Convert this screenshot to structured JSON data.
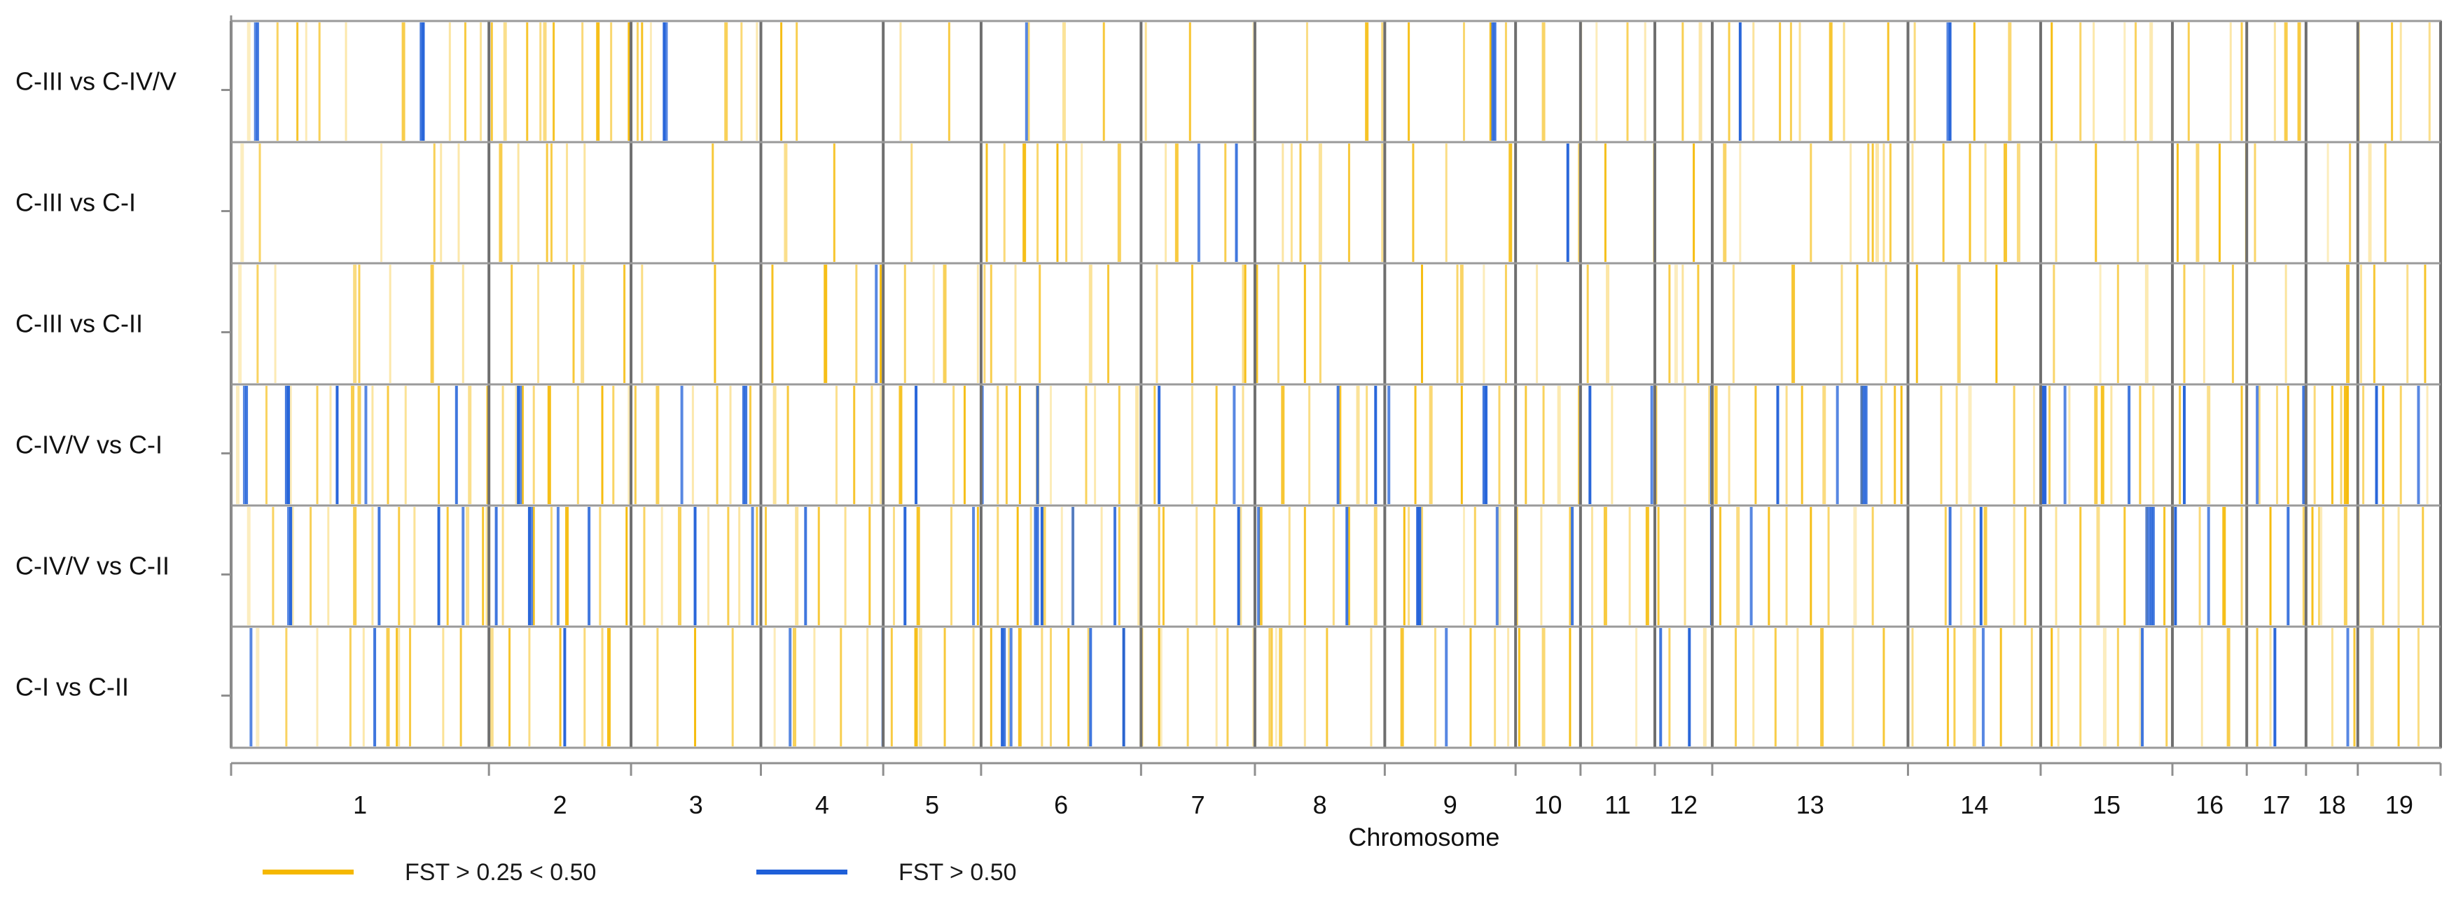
{
  "chart_data": {
    "type": "heatmap",
    "title": "",
    "xlabel": "Chromosome",
    "ylabel": "",
    "rows": [
      "C-III vs C-IV/V",
      "C-III vs C-I",
      "C-III vs C-II",
      "C-IV/V vs C-I",
      "C-IV/V vs C-II",
      "C-I vs C-II"
    ],
    "chromosomes": [
      "1",
      "2",
      "3",
      "4",
      "5",
      "6",
      "7",
      "8",
      "9",
      "10",
      "11",
      "12",
      "13",
      "14",
      "15",
      "16",
      "17",
      "18",
      "19"
    ],
    "chromosome_lengths_mb": [
      274,
      151,
      138,
      130,
      104,
      170,
      121,
      138,
      139,
      69,
      79,
      61,
      208,
      141,
      140,
      79,
      63,
      55,
      88
    ],
    "legend": [
      {
        "label": "FST > 0.25 < 0.50",
        "color": "#F5B800"
      },
      {
        "label": "FST > 0.50",
        "color": "#1F5FD8"
      }
    ],
    "series": [
      {
        "name": "C-III vs C-IV/V",
        "moderate": [
          0.8,
          2.1,
          3.4,
          4.0,
          5.2,
          7.8,
          9.9,
          10.6,
          11.3,
          11.8,
          12.4,
          13.4,
          14.0,
          14.6,
          15.9,
          16.6,
          17.2,
          18.0,
          18.4,
          19.0,
          22.4,
          23.8,
          25.6,
          30.3,
          32.5,
          37.7,
          39.5,
          41.4,
          43.4,
          48.7,
          51.4,
          52.1,
          53.3,
          55.8,
          57.0,
          59.4,
          61.8,
          63.2,
          64.0,
          65.7,
          66.5,
          67.8,
          68.9,
          70.1,
          71.0,
          72.4,
          73.0,
          75.0,
          76.2,
          78.9,
          80.5,
          82.4,
          83.7,
          85.7,
          86.2,
          86.9,
          88.6,
          90.5,
          91.0,
          92.5,
          93.6,
          96.3,
          97.8,
          99.5,
          3.0,
          14.2,
          18.6,
          23.1,
          24.9,
          36.1,
          46.3,
          57.7,
          61.1,
          70.6,
          84.3,
          93.0,
          98.2
        ],
        "strong": [
          1.1,
          8.6,
          19.6,
          36.0,
          57.1,
          68.3,
          77.7,
          1.2,
          8.7,
          19.7,
          57.2,
          77.8
        ]
      },
      {
        "name": "C-III vs C-I",
        "moderate": [
          0.5,
          1.3,
          6.8,
          9.2,
          10.3,
          12.2,
          13.0,
          14.3,
          15.2,
          21.8,
          25.1,
          27.3,
          30.8,
          34.2,
          35.0,
          35.9,
          36.5,
          37.4,
          37.8,
          38.5,
          40.2,
          42.3,
          45.0,
          47.6,
          48.4,
          49.3,
          50.6,
          52.1,
          53.5,
          55.0,
          57.9,
          61.0,
          62.2,
          64.4,
          66.2,
          67.6,
          68.3,
          71.5,
          73.3,
          74.1,
          74.5,
          75.1,
          76.1,
          77.5,
          79.4,
          80.3,
          82.6,
          84.4,
          86.3,
          88.1,
          89.0,
          90.0,
          91.6,
          94.9,
          95.9,
          96.8,
          97.5,
          9.5,
          14.5,
          16.0,
          42.8,
          48.0,
          74.3,
          74.8,
          78.7,
          80.9,
          91.2
        ],
        "strong": [
          43.8,
          45.5,
          60.5
        ]
      },
      {
        "name": "C-III vs C-II",
        "moderate": [
          0.4,
          1.2,
          2.0,
          5.8,
          7.2,
          9.1,
          10.5,
          12.7,
          13.9,
          15.5,
          15.9,
          17.8,
          18.6,
          21.9,
          24.0,
          26.9,
          28.3,
          29.4,
          30.5,
          31.8,
          32.3,
          33.8,
          34.4,
          35.5,
          36.6,
          38.9,
          39.7,
          41.9,
          43.5,
          45.8,
          46.4,
          47.4,
          48.6,
          49.3,
          53.9,
          55.7,
          56.7,
          57.7,
          59.1,
          61.4,
          62.3,
          65.1,
          65.7,
          66.4,
          68.0,
          70.7,
          72.9,
          73.6,
          74.9,
          76.3,
          78.2,
          79.9,
          82.5,
          84.6,
          85.4,
          86.7,
          88.4,
          89.3,
          90.6,
          93.0,
          95.8,
          96.4,
          97.0,
          98.5,
          99.3,
          5.6,
          24.5,
          34.1,
          45.9,
          55.5,
          65.4
        ],
        "strong": [
          29.2
        ]
      },
      {
        "name": "C-IV/V vs C-I",
        "moderate": [
          0.3,
          1.6,
          2.7,
          3.9,
          4.5,
          5.5,
          6.4,
          7.1,
          7.9,
          9.4,
          10.8,
          11.6,
          12.3,
          13.2,
          13.7,
          14.4,
          15.7,
          16.8,
          17.3,
          18.0,
          19.3,
          20.9,
          22.0,
          22.6,
          23.5,
          24.6,
          25.2,
          27.4,
          28.2,
          29.0,
          30.3,
          32.7,
          33.2,
          34.7,
          35.7,
          36.5,
          37.1,
          38.7,
          39.1,
          40.2,
          41.0,
          41.8,
          43.5,
          44.6,
          45.8,
          47.6,
          48.8,
          50.2,
          51.4,
          53.6,
          54.3,
          55.7,
          57.4,
          58.1,
          59.4,
          60.1,
          61.0,
          62.5,
          64.5,
          65.8,
          67.2,
          67.8,
          69.0,
          70.4,
          71.1,
          72.1,
          73.8,
          74.7,
          75.6,
          77.4,
          78.7,
          80.7,
          81.6,
          82.3,
          83.2,
          84.4,
          85.1,
          86.4,
          87.0,
          88.2,
          89.5,
          91.0,
          92.6,
          93.1,
          94.3,
          95.7,
          96.5,
          97.4,
          98.2,
          99.4,
          5.8,
          12.9,
          18.3,
          29.4,
          35.1,
          51.0,
          58.6,
          66.9,
          75.3,
          78.1,
          84.7,
          91.8,
          95.1,
          95.5,
          95.8
        ],
        "strong": [
          0.6,
          2.5,
          4.8,
          6.1,
          10.2,
          13.0,
          20.4,
          23.2,
          31.0,
          34.0,
          36.5,
          42.0,
          45.4,
          50.1,
          51.8,
          52.4,
          56.7,
          61.5,
          64.3,
          67.0,
          70.0,
          72.7,
          73.9,
          82.0,
          83.0,
          85.9,
          88.4,
          91.7,
          93.8,
          97.1,
          99.0,
          0.7,
          2.6,
          13.1,
          23.3,
          56.8,
          73.8,
          74.0,
          82.1
        ]
      },
      {
        "name": "C-IV/V vs C-II",
        "moderate": [
          0.8,
          1.9,
          2.8,
          3.6,
          4.4,
          5.6,
          6.4,
          7.6,
          8.3,
          9.8,
          10.7,
          11.4,
          12.3,
          13.7,
          14.5,
          15.2,
          16.7,
          17.9,
          18.7,
          19.5,
          20.3,
          21.6,
          22.5,
          23.0,
          24.2,
          25.6,
          26.6,
          27.8,
          28.9,
          30.0,
          31.1,
          32.6,
          33.8,
          34.7,
          35.6,
          36.8,
          37.6,
          38.1,
          39.4,
          40.2,
          41.1,
          42.0,
          43.7,
          44.5,
          45.7,
          46.6,
          47.9,
          48.6,
          49.9,
          50.6,
          51.8,
          53.1,
          53.9,
          55.8,
          56.3,
          57.4,
          58.2,
          59.3,
          60.6,
          61.6,
          62.2,
          63.3,
          64.6,
          65.8,
          67.4,
          68.2,
          69.6,
          70.4,
          71.5,
          72.3,
          73.5,
          74.3,
          75.9,
          77.6,
          78.3,
          79.4,
          80.7,
          81.2,
          82.6,
          83.7,
          84.5,
          85.7,
          86.7,
          87.5,
          89.1,
          90.2,
          91.0,
          92.3,
          93.8,
          94.6,
          95.7,
          96.3,
          97.4,
          98.1,
          99.2,
          11.6,
          23.8,
          36.2,
          42.2,
          53.3,
          64.1,
          78.9,
          94.2,
          94.5
        ],
        "strong": [
          2.6,
          6.7,
          9.4,
          10.5,
          12.0,
          13.5,
          14.8,
          16.2,
          21.0,
          23.6,
          26.0,
          30.5,
          33.6,
          36.4,
          36.7,
          38.1,
          40.0,
          45.6,
          46.5,
          50.5,
          53.7,
          57.3,
          60.7,
          67.0,
          68.8,
          77.8,
          79.2,
          86.7,
          87.0,
          88.0,
          89.5,
          93.1,
          2.7,
          13.6,
          36.5,
          53.8,
          86.8,
          86.9
        ]
      },
      {
        "name": "C-I vs C-II",
        "moderate": [
          1.2,
          2.5,
          3.9,
          5.4,
          6.0,
          7.1,
          7.6,
          8.1,
          9.6,
          10.4,
          11.8,
          12.6,
          13.5,
          14.9,
          16.0,
          17.1,
          19.3,
          21.0,
          22.7,
          24.6,
          25.5,
          26.4,
          27.6,
          28.8,
          29.9,
          31.2,
          32.3,
          33.6,
          34.4,
          35.2,
          35.7,
          36.7,
          37.9,
          38.8,
          40.4,
          41.2,
          42.1,
          43.3,
          44.6,
          45.1,
          46.3,
          47.1,
          48.6,
          49.6,
          51.6,
          53.0,
          54.5,
          56.1,
          57.2,
          58.3,
          59.4,
          60.6,
          61.6,
          63.6,
          65.1,
          66.7,
          68.1,
          68.9,
          69.9,
          70.9,
          72.0,
          73.4,
          74.8,
          76.1,
          77.7,
          78.9,
          80.1,
          81.5,
          82.4,
          83.7,
          84.8,
          85.4,
          86.4,
          87.6,
          89.2,
          90.4,
          92.3,
          93.9,
          95.1,
          96.1,
          96.9,
          98.1,
          99.0,
          7.5,
          16.8,
          31.0,
          37.1,
          42.0,
          47.0,
          47.3,
          47.5,
          57.8,
          78.0,
          82.7,
          91.7
        ],
        "strong": [
          0.9,
          6.5,
          15.1,
          25.3,
          29.5,
          34.9,
          35.3,
          38.9,
          40.4,
          55.0,
          64.7,
          66.0,
          79.3,
          86.5,
          92.5,
          95.8,
          35.0
        ]
      }
    ]
  }
}
